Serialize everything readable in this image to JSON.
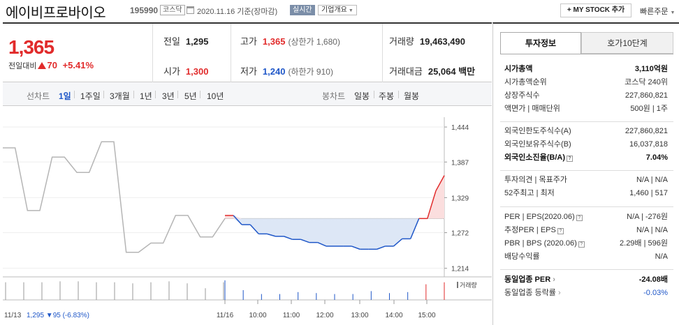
{
  "header": {
    "stock_name": "에이비프로바이오",
    "stock_code": "195990",
    "market_badge": "코스닥",
    "date_text": "2020.11.16 기준(장마감)",
    "live_badge": "실시간",
    "corp_info_label": "기업개요",
    "mystock_label": "+ MY STOCK 추가",
    "quick_order_label": "빠른주문"
  },
  "price": {
    "current": "1,365",
    "change_label": "전일대비",
    "change_value": "70",
    "change_pct": "+5.41%"
  },
  "stats": {
    "prev_close_label": "전일",
    "prev_close": "1,295",
    "open_label": "시가",
    "open": "1,300",
    "high_label": "고가",
    "high": "1,365",
    "upper_limit": "(상한가 1,680)",
    "low_label": "저가",
    "low": "1,240",
    "lower_limit": "(하한가 910)",
    "volume_label": "거래량",
    "volume": "19,463,490",
    "amount_label": "거래대금",
    "amount": "25,064 백만"
  },
  "tabs": {
    "line_chart_label": "선차트",
    "line_periods": [
      "1일",
      "1주일",
      "3개월",
      "1년",
      "3년",
      "5년",
      "10년"
    ],
    "selected_period": "1일",
    "candle_chart_label": "봉차트",
    "candle_periods": [
      "일봉",
      "주봉",
      "월봉"
    ]
  },
  "chart_data": {
    "type": "line",
    "baseline": 1295,
    "ylim": [
      1200,
      1460
    ],
    "y_ticks": [
      1214,
      1272,
      1329,
      1387,
      1444
    ],
    "x_tick_labels": [
      "11/13",
      "11/16",
      "10:00",
      "11:00",
      "12:00",
      "13:00",
      "14:00",
      "15:00"
    ],
    "prev_day_label": "11/13",
    "prev_day_summary": "1,295 ▼95 (-6.83%)",
    "volume_label": "거래량",
    "prev_day_series": [
      1410,
      1410,
      1308,
      1308,
      1395,
      1395,
      1370,
      1370,
      1420,
      1420,
      1240,
      1240,
      1255,
      1255,
      1300,
      1300,
      1265,
      1265,
      1295
    ],
    "today_series": [
      1300,
      1300,
      1285,
      1285,
      1270,
      1270,
      1266,
      1266,
      1261,
      1261,
      1256,
      1256,
      1250,
      1250,
      1250,
      1250,
      1245,
      1245,
      1245,
      1250,
      1250,
      1262,
      1262,
      1295,
      1295,
      1340,
      1365
    ],
    "colors": {
      "up": "#e12b2b",
      "down": "#1f57c8",
      "prev": "#b5b5b5",
      "up_fill": "#fbdede",
      "down_fill": "#dde7f6"
    }
  },
  "side": {
    "tab_active": "투자정보",
    "tab_inactive": "호가10단계",
    "rows1": [
      {
        "label": "시가총액",
        "value": "3,110억원",
        "bold": true
      },
      {
        "label": "시가총액순위",
        "value": "코스닥 240위"
      },
      {
        "label": "상장주식수",
        "value": "227,860,821"
      },
      {
        "label": "액면가 | 매매단위",
        "value": "500원 | 1주"
      }
    ],
    "rows2": [
      {
        "label": "외국인한도주식수(A)",
        "value": "227,860,821"
      },
      {
        "label": "외국인보유주식수(B)",
        "value": "16,037,818"
      },
      {
        "label": "외국인소진율(B/A)",
        "value": "7.04%",
        "bold": true
      }
    ],
    "rows3": [
      {
        "label": "투자의견 | 목표주가",
        "value": "N/A | N/A"
      },
      {
        "label": "52주최고 | 최저",
        "value": "1,460 | 517"
      }
    ],
    "rows4": [
      {
        "label": "PER | EPS(2020.06)",
        "value": "N/A | -276원"
      },
      {
        "label": "추정PER | EPS",
        "value": "N/A | N/A"
      },
      {
        "label": "PBR | BPS (2020.06)",
        "value": "2.29배 | 596원"
      },
      {
        "label": "배당수익률",
        "value": "N/A"
      }
    ],
    "rows5": [
      {
        "label": "동일업종 PER",
        "value": "-24.08배",
        "bold": true
      },
      {
        "label": "동일업종 등락률",
        "value": "-0.03%",
        "blue": true
      }
    ]
  }
}
